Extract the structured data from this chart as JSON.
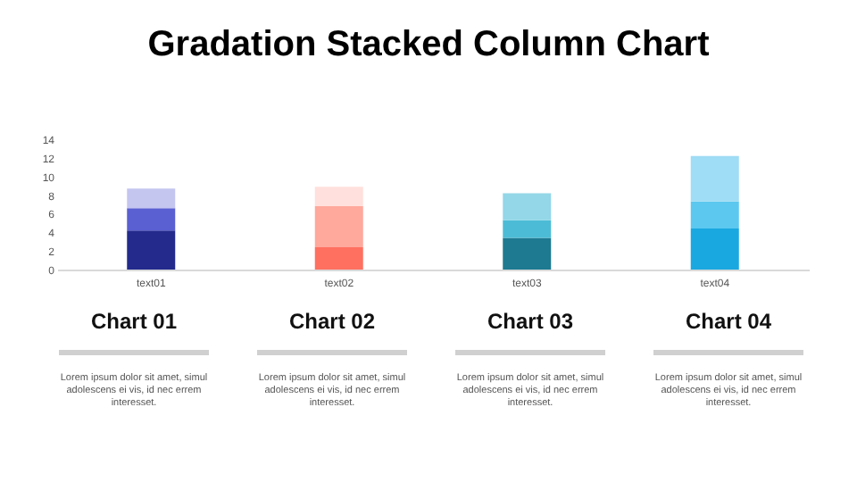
{
  "chart_data": {
    "type": "bar",
    "title": "Gradation Stacked Column Chart",
    "stacked": true,
    "categories": [
      "text01",
      "text02",
      "text03",
      "text04"
    ],
    "series": [
      {
        "values": [
          4.2,
          2.4,
          3.4,
          4.4
        ],
        "colors": [
          "#232a8c",
          "#ff7060",
          "#1d7a91",
          "#1aa8e0"
        ]
      },
      {
        "values": [
          2.4,
          4.4,
          1.9,
          2.9
        ],
        "colors": [
          "#5a5fd2",
          "#ffa89c",
          "#4cbcd6",
          "#5cc8ef"
        ]
      },
      {
        "values": [
          2.1,
          2.1,
          2.9,
          4.9
        ],
        "colors": [
          "#c4c6f0",
          "#ffe0dc",
          "#93d7e8",
          "#9fdcf5"
        ]
      }
    ],
    "ylim": [
      0,
      14
    ],
    "yticks": [
      0,
      2,
      4,
      6,
      8,
      10,
      12,
      14
    ],
    "grid": false,
    "annotations": [
      "Chart 01",
      "Lorem ipsum dolor sit amet, simul adolescens ei vis, id nec errem interesset.",
      "Chart 02",
      "Lorem ipsum dolor sit amet, simul adolescens ei vis, id nec errem interesset.",
      "Chart 03",
      "Lorem ipsum dolor sit amet, simul adolescens ei vis, id nec errem interesset.",
      "Chart 04",
      "Lorem ipsum dolor sit amet, simul adolescens ei vis, id nec errem interesset."
    ]
  }
}
